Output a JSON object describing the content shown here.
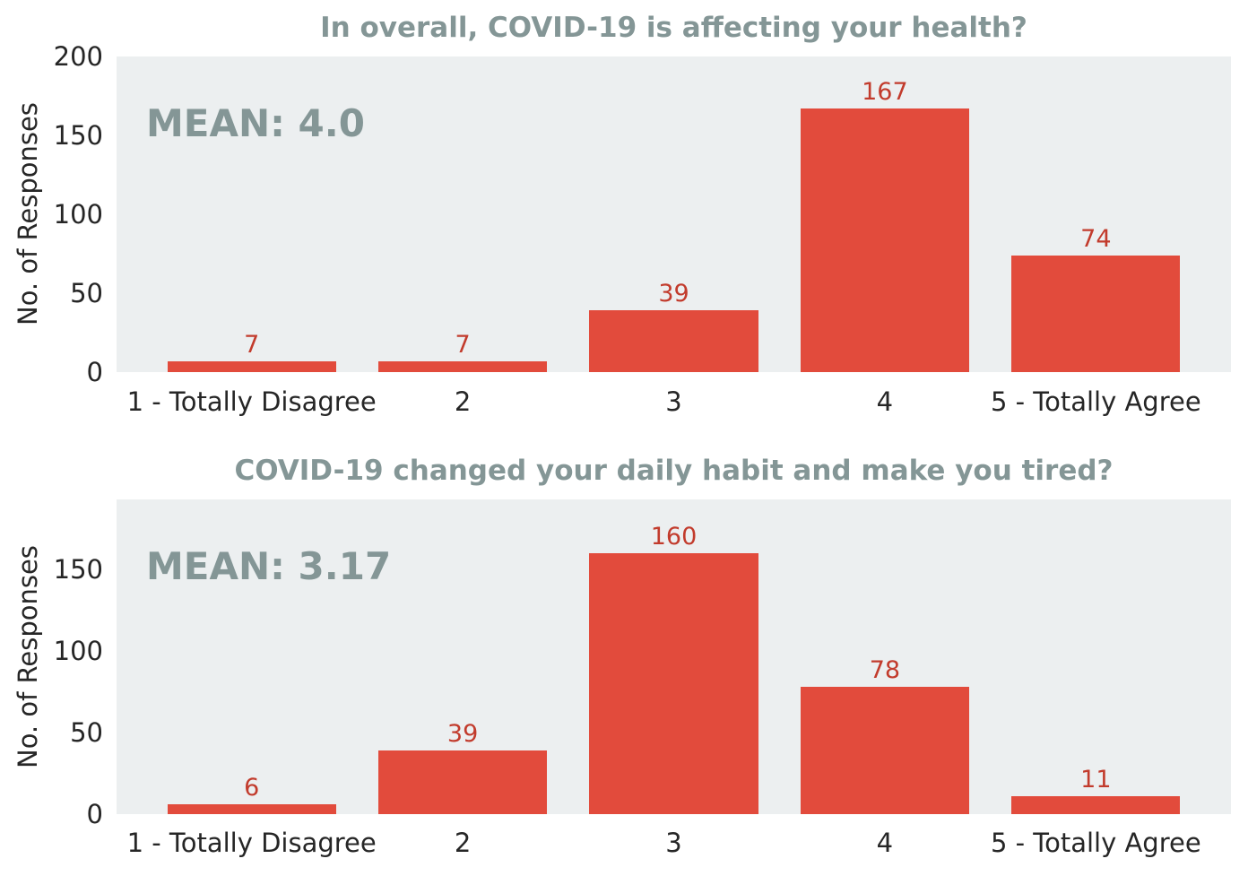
{
  "figure": {
    "background_color": "#ffffff",
    "plot_background_color": "#eceff0",
    "bar_color": "#e24b3c",
    "value_label_color": "#c23b2c",
    "title_color": "#849696",
    "tick_label_color": "#262626",
    "ylabel": "No. of Responses"
  },
  "chart_data": [
    {
      "type": "bar",
      "title": "In overall, COVID-19 is affecting your health?",
      "annotation": "MEAN: 4.0",
      "categories": [
        "1 - Totally Disagree",
        "2",
        "3",
        "4",
        "5 - Totally Agree"
      ],
      "values": [
        7,
        7,
        39,
        167,
        74
      ],
      "value_labels": [
        "7",
        "7",
        "39",
        "167",
        "74"
      ],
      "xlabel": "",
      "ylabel": "No. of Responses",
      "yticks": [
        0,
        50,
        100,
        150,
        200
      ],
      "ylim": [
        0,
        200
      ],
      "grid": false,
      "legend": false
    },
    {
      "type": "bar",
      "title": "COVID-19 changed your daily habit and make you tired?",
      "annotation": "MEAN: 3.17",
      "categories": [
        "1 - Totally Disagree",
        "2",
        "3",
        "4",
        "5 - Totally Agree"
      ],
      "values": [
        6,
        39,
        160,
        78,
        11
      ],
      "value_labels": [
        "6",
        "39",
        "160",
        "78",
        "11"
      ],
      "xlabel": "",
      "ylabel": "No. of Responses",
      "yticks": [
        0,
        50,
        100,
        150
      ],
      "ylim": [
        0,
        193
      ],
      "grid": false,
      "legend": false
    }
  ]
}
